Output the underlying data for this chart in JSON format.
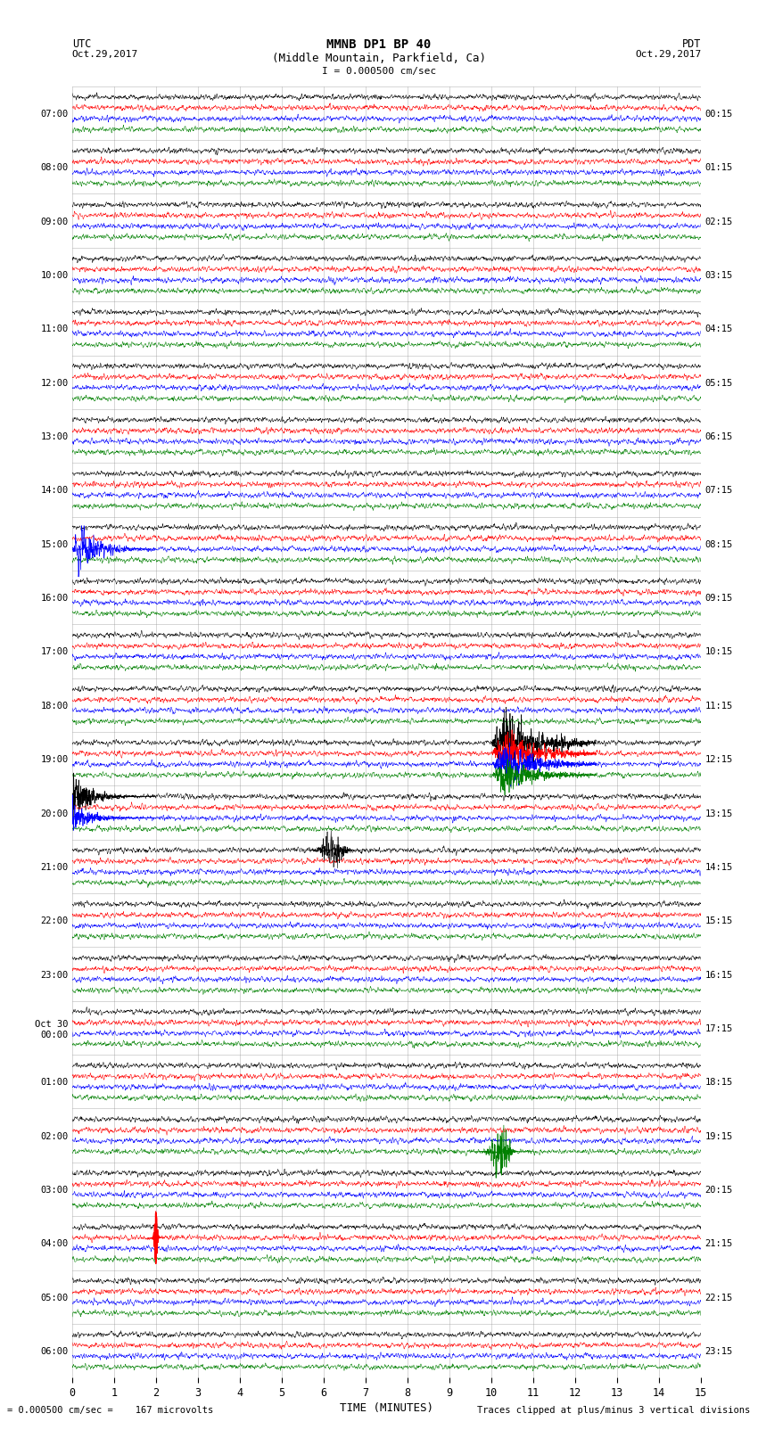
{
  "title_line1": "MMNB DP1 BP 40",
  "title_line2": "(Middle Mountain, Parkfield, Ca)",
  "scale_label": "I = 0.000500 cm/sec",
  "utc_label": "UTC",
  "pdt_label": "PDT",
  "date_left": "Oct.29,2017",
  "date_right": "Oct.29,2017",
  "xlabel": "TIME (MINUTES)",
  "footer_left": "= 0.000500 cm/sec =    167 microvolts",
  "footer_right": "Traces clipped at plus/minus 3 vertical divisions",
  "colors": [
    "black",
    "red",
    "blue",
    "green"
  ],
  "utc_times": [
    "07:00",
    "08:00",
    "09:00",
    "10:00",
    "11:00",
    "12:00",
    "13:00",
    "14:00",
    "15:00",
    "16:00",
    "17:00",
    "18:00",
    "19:00",
    "20:00",
    "21:00",
    "22:00",
    "23:00",
    "Oct 30\n00:00",
    "01:00",
    "02:00",
    "03:00",
    "04:00",
    "05:00",
    "06:00"
  ],
  "pdt_times": [
    "00:15",
    "01:15",
    "02:15",
    "03:15",
    "04:15",
    "05:15",
    "06:15",
    "07:15",
    "08:15",
    "09:15",
    "10:15",
    "11:15",
    "12:15",
    "13:15",
    "14:15",
    "15:15",
    "16:15",
    "17:15",
    "18:15",
    "19:15",
    "20:15",
    "21:15",
    "22:15",
    "23:15"
  ],
  "num_rows": 24,
  "traces_per_row": 4,
  "xmin": 0,
  "xmax": 15,
  "noise_amplitude": 0.04,
  "bg_color": "white",
  "grid_color": "#888888",
  "fig_width": 8.5,
  "fig_height": 16.13
}
